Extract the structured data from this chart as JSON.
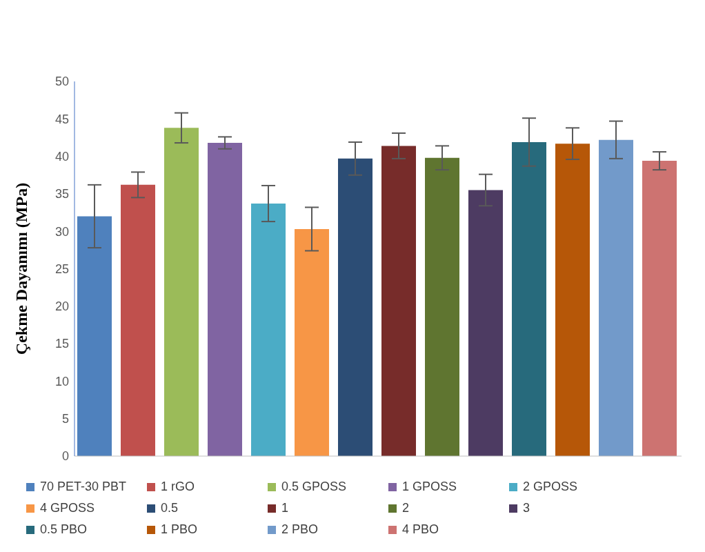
{
  "chart_data": {
    "type": "bar",
    "ylabel": "Çekme Dayanımı (MPa)",
    "categories": [
      null
    ],
    "ylim": [
      0,
      50
    ],
    "yticks": [
      0,
      5,
      10,
      15,
      20,
      25,
      30,
      35,
      40,
      45,
      50
    ],
    "grid": false,
    "legend": "bottom",
    "tick_labels": "y",
    "series": [
      {
        "name": "70 PET-30 PBT",
        "color": "#4f81bd",
        "values": [
          32.0
        ],
        "errors": [
          4.2
        ]
      },
      {
        "name": "1 rGO",
        "color": "#c0504d",
        "values": [
          36.2
        ],
        "errors": [
          1.7
        ]
      },
      {
        "name": "0.5 GPOSS",
        "color": "#9bbb59",
        "values": [
          43.8
        ],
        "errors": [
          2.0
        ]
      },
      {
        "name": "1 GPOSS",
        "color": "#8064a2",
        "values": [
          41.8
        ],
        "errors": [
          0.8
        ]
      },
      {
        "name": "2 GPOSS",
        "color": "#4bacc6",
        "values": [
          33.7
        ],
        "errors": [
          2.4
        ]
      },
      {
        "name": "4 GPOSS",
        "color": "#f79646",
        "values": [
          30.3
        ],
        "errors": [
          2.9
        ]
      },
      {
        "name": "0.5",
        "color": "#2c4d75",
        "values": [
          39.7
        ],
        "errors": [
          2.2
        ]
      },
      {
        "name": "1",
        "color": "#772c2a",
        "values": [
          41.4
        ],
        "errors": [
          1.7
        ]
      },
      {
        "name": "2",
        "color": "#5f7530",
        "values": [
          39.8
        ],
        "errors": [
          1.6
        ]
      },
      {
        "name": "3",
        "color": "#4d3b62",
        "values": [
          35.5
        ],
        "errors": [
          2.1
        ]
      },
      {
        "name": "0.5 PBO",
        "color": "#276a7c",
        "values": [
          41.9
        ],
        "errors": [
          3.2
        ]
      },
      {
        "name": "1 PBO",
        "color": "#b65708",
        "values": [
          41.7
        ],
        "errors": [
          2.1
        ]
      },
      {
        "name": "2 PBO",
        "color": "#729aca",
        "values": [
          42.2
        ],
        "errors": [
          2.5
        ]
      },
      {
        "name": "4 PBO",
        "color": "#cd7371",
        "values": [
          39.4
        ],
        "errors": [
          1.2
        ]
      }
    ]
  }
}
